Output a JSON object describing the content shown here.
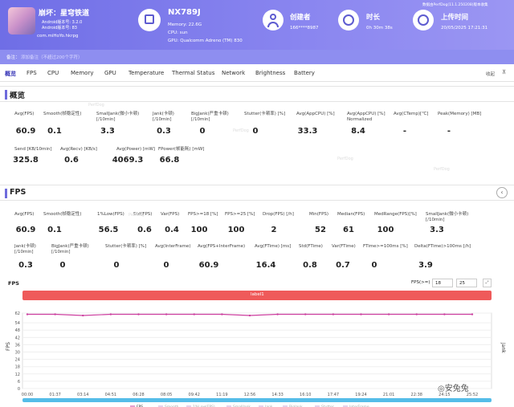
{
  "header": {
    "app_name": "崩坏：星穹铁道",
    "android_ver": "Android版本号: 3.2.0",
    "android_ver2": "Android版本号: 83",
    "package": "com.miHoYo.hkrpg",
    "device": "NX789J",
    "memory": "Memory: 22.6G",
    "cpu": "CPU: sun",
    "gpu": "GPU: Qualcomm Adreno (TM) 830",
    "creator_label": "创建者",
    "creator_value": "166****8987",
    "duration_label": "时长",
    "duration_value": "0h 30m 38s",
    "upload_label": "上传时间",
    "upload_value": "20/05/2025 17:21:31",
    "perfdog_version": "数据由PerfDog(11.1.250208)版本收集"
  },
  "subheader": {
    "label": "备注：",
    "placeholder": "添加备注（不超过200个字符）"
  },
  "tabs": [
    "概览",
    "FPS",
    "CPU",
    "Memory",
    "GPU",
    "Temperature",
    "Thermal Status",
    "Network",
    "Brightness",
    "Battery"
  ],
  "tabs_right": "收起",
  "overview": {
    "title": "概览",
    "row1_labels": [
      "Avg(FPS)",
      "Smooth(帧稳定性)",
      "SmallJank(微小卡顿)\n[/10min]",
      "Jank(卡顿)\n[/10min]",
      "BigJank(严重卡顿)\n[/10min]",
      "Stutter(卡顿率) [%]",
      "Avg(AppCPU) [%]",
      "Avg(AppCPU) [%]\nNormalized",
      "Avg(CTemp)[℃]",
      "Peak(Memory) [MB]"
    ],
    "row1_values": [
      "60.9",
      "0.1",
      "3.3",
      "0.3",
      "0",
      "0",
      "33.3",
      "8.4",
      "-",
      "-"
    ],
    "row2_labels": [
      "Send [KB/10min]",
      "Avg(Recv) [KB/s]",
      "Avg(Power) [mW]",
      "FPower(帧能耗) [mW]"
    ],
    "row2_values": [
      "325.8",
      "0.6",
      "4069.3",
      "66.8"
    ]
  },
  "fps_section": {
    "title": "FPS",
    "row1_labels": [
      "Avg(FPS)",
      "Smooth(帧稳定性)",
      "1%Low(FPS)",
      "Std(FPS)",
      "Var(FPS)",
      "FPS>=18 [%]",
      "FPS>=25 [%]",
      "Drop(FPS) [/h]",
      "Min(FPS)",
      "Median(FPS)",
      "MedRange(FPS)[%]",
      "SmallJank(微小卡顿)\n[/10min]"
    ],
    "row1_values": [
      "60.9",
      "0.1",
      "56.5",
      "0.6",
      "0.4",
      "100",
      "100",
      "2",
      "52",
      "61",
      "100",
      "3.3"
    ],
    "row2_labels": [
      "Jank(卡顿)\n[/10min]",
      "BigJank(严重卡顿)\n[/10min]",
      "Stutter(卡顿率) [%]",
      "Avg(InterFrame)",
      "Avg(FPS+InterFrame)",
      "Avg(FTime) [ms]",
      "Std(FTime)",
      "Var(FTime)",
      "FTime>=100ms [%]",
      "Delta(FTime)>100ms [/h]"
    ],
    "row2_values": [
      "0.3",
      "0",
      "0",
      "0",
      "60.9",
      "16.4",
      "0.8",
      "0.7",
      "0",
      "3.9"
    ]
  },
  "chart_header": {
    "title": "FPS",
    "threshold_label": "FPS(>=)",
    "threshold_1": "18",
    "threshold_2": "25",
    "label_bar": "label1"
  },
  "chart_data": {
    "type": "line",
    "ylabel": "FPS",
    "y2label": "Jank",
    "ylim": [
      0,
      62
    ],
    "yticks": [
      0,
      6,
      12,
      18,
      24,
      30,
      36,
      42,
      48,
      54,
      62
    ],
    "x": [
      "00:00",
      "01:37",
      "03:14",
      "04:51",
      "06:28",
      "08:05",
      "09:42",
      "11:19",
      "12:56",
      "14:33",
      "16:10",
      "17:47",
      "19:24",
      "21:01",
      "22:38",
      "24:15",
      "25:52"
    ],
    "series": [
      {
        "name": "FPS",
        "values": [
          61,
          61,
          60,
          61,
          61,
          61,
          61,
          61,
          60,
          61,
          61,
          61,
          61,
          61,
          61,
          61,
          61
        ]
      }
    ],
    "legend": [
      "FPS",
      "Smooth",
      "1%Low(FPS)",
      "SmallJank",
      "Jank",
      "BigJank",
      "Stutter",
      "InterFrame"
    ],
    "colors": {
      "fps": "#cc3f9f",
      "label": "#ef5a5a",
      "scroll": "#55bde8"
    }
  },
  "watermarks": [
    "PerfDog",
    "PerfDog",
    "PerfDog",
    "PerfDog",
    "PerfDog"
  ],
  "brand": "安兔兔"
}
